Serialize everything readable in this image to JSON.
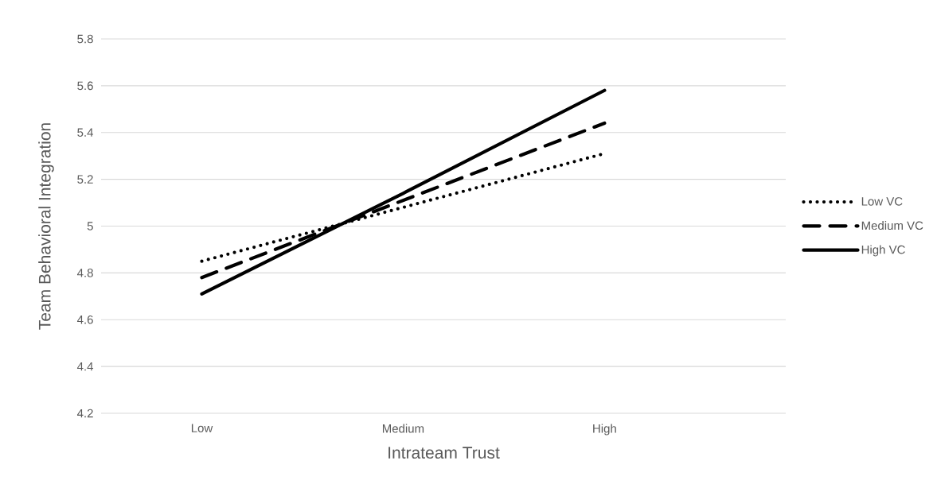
{
  "chart_data": {
    "type": "line",
    "xlabel": "Intrateam Trust",
    "ylabel": "Team Behavioral Integration",
    "categories": [
      "Low",
      "Medium",
      "High"
    ],
    "series": [
      {
        "name": "Low VC",
        "color": "#000000",
        "line_style": "dotted",
        "values": [
          4.85,
          5.08,
          5.31
        ]
      },
      {
        "name": "Medium VC",
        "color": "#000000",
        "line_style": "dashed",
        "values": [
          4.78,
          5.11,
          5.44
        ]
      },
      {
        "name": "High VC",
        "color": "#000000",
        "line_style": "solid",
        "values": [
          4.71,
          5.14,
          5.58
        ]
      }
    ],
    "ylim": [
      4.2,
      5.8
    ],
    "yticks": [
      4.2,
      4.4,
      4.6,
      4.8,
      5,
      5.2,
      5.4,
      5.6,
      5.8
    ],
    "grid": "y",
    "legend": "right"
  }
}
